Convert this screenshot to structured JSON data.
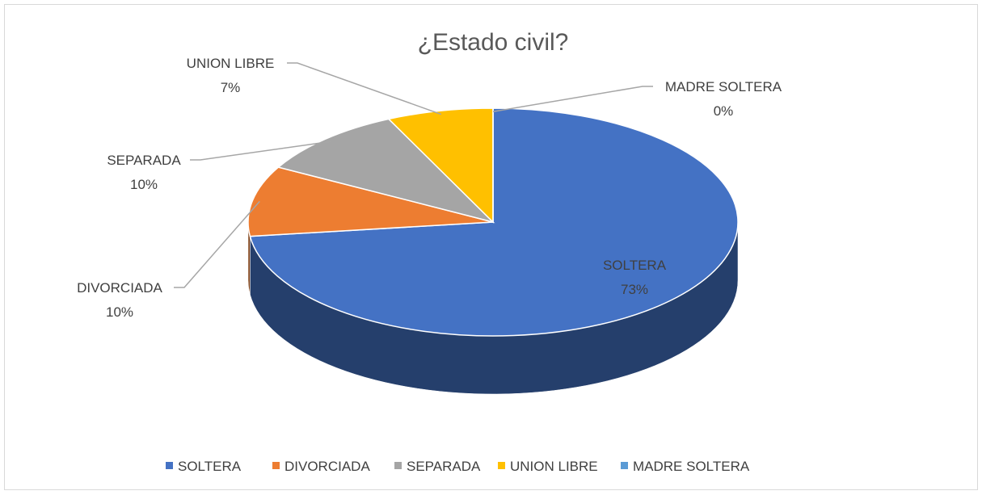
{
  "chart_data": {
    "type": "pie",
    "title": "¿Estado civil?",
    "categories": [
      "SOLTERA",
      "DIVORCIADA",
      "SEPARADA",
      "UNION LIBRE",
      "MADRE SOLTERA"
    ],
    "values": [
      73,
      10,
      10,
      7,
      0
    ],
    "value_labels": [
      "73%",
      "10%",
      "10%",
      "7%",
      "0%"
    ],
    "colors": [
      "#4472c4",
      "#ed7d31",
      "#a5a5a5",
      "#ffc000",
      "#5b9bd5"
    ],
    "legend": "bottom"
  }
}
